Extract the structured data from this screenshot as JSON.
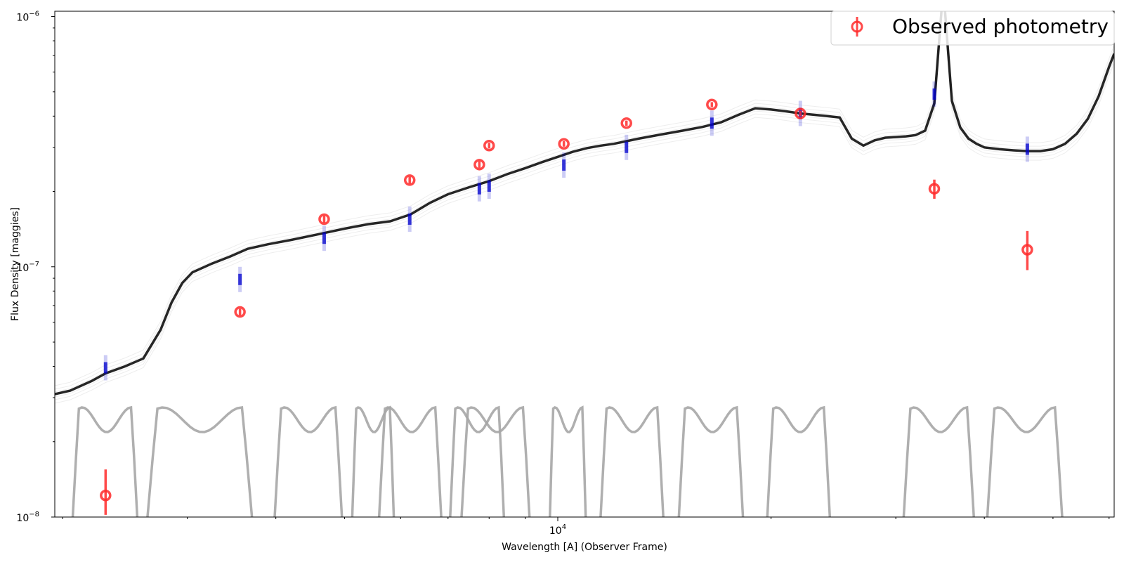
{
  "chart_data": {
    "type": "scatter",
    "title": "",
    "xlabel": "Wavelength [A] (Observer Frame)",
    "ylabel": "Flux Density [maggies]",
    "xscale": "log",
    "yscale": "log",
    "xlim": [
      1950,
      61000
    ],
    "ylim": [
      1e-08,
      1.05e-06
    ],
    "grid": false,
    "legend": {
      "placement": "top-right",
      "entries": [
        "Observed photometry"
      ]
    },
    "x_ticks": [
      {
        "value": 10000,
        "base": "10",
        "exp": "4"
      }
    ],
    "y_ticks": [
      {
        "value": 1e-06,
        "base": "10",
        "exp": "−6"
      },
      {
        "value": 1e-07,
        "base": "10",
        "exp": "−7"
      },
      {
        "value": 1e-08,
        "base": "10",
        "exp": "−8"
      }
    ],
    "colors": {
      "photometry": "#ff2a2a",
      "model_spectrum": "#000000",
      "model_photometry": "#0000cc",
      "filter_curves": "#a6a6a6"
    },
    "series": [
      {
        "name": "Observed photometry",
        "kind": "errorbar",
        "points": [
          {
            "x": 2300,
            "y": 1.22e-08,
            "yerr_low": 2e-09,
            "yerr_high": 3.3e-09
          },
          {
            "x": 3560,
            "y": 6.6e-08,
            "yerr_low": 2e-09,
            "yerr_high": 2e-09
          },
          {
            "x": 4680,
            "y": 1.55e-07,
            "yerr_low": 5e-09,
            "yerr_high": 5e-09
          },
          {
            "x": 6180,
            "y": 2.22e-07,
            "yerr_low": 7e-09,
            "yerr_high": 7e-09
          },
          {
            "x": 7750,
            "y": 2.56e-07,
            "yerr_low": 8e-09,
            "yerr_high": 8e-09
          },
          {
            "x": 8000,
            "y": 3.05e-07,
            "yerr_low": 8e-09,
            "yerr_high": 8e-09
          },
          {
            "x": 10200,
            "y": 3.1e-07,
            "yerr_low": 8e-09,
            "yerr_high": 8e-09
          },
          {
            "x": 12500,
            "y": 3.75e-07,
            "yerr_low": 9e-09,
            "yerr_high": 9e-09
          },
          {
            "x": 16500,
            "y": 4.45e-07,
            "yerr_low": 1e-08,
            "yerr_high": 1e-08
          },
          {
            "x": 22000,
            "y": 4.1e-07,
            "yerr_low": 1e-08,
            "yerr_high": 1e-08
          },
          {
            "x": 34000,
            "y": 2.05e-07,
            "yerr_low": 1.8e-08,
            "yerr_high": 1.8e-08
          },
          {
            "x": 46000,
            "y": 1.17e-07,
            "yerr_low": 2e-08,
            "yerr_high": 2.2e-08
          }
        ]
      },
      {
        "kind": "model_spectrum",
        "x": [
          1950,
          2050,
          2200,
          2300,
          2450,
          2600,
          2750,
          2850,
          2950,
          3050,
          3250,
          3450,
          3650,
          3900,
          4200,
          4600,
          5000,
          5400,
          5800,
          6200,
          6600,
          7000,
          7500,
          8000,
          8500,
          9000,
          9500,
          10000,
          10500,
          11000,
          11500,
          12000,
          13000,
          14000,
          15000,
          16000,
          17000,
          18000,
          19000,
          20000,
          21000,
          22000,
          23000,
          24000,
          25000,
          26000,
          27000,
          28000,
          29000,
          30000,
          31000,
          32000,
          33000,
          34000,
          35000,
          36000,
          37000,
          38000,
          39000,
          40000,
          42000,
          44000,
          46000,
          48000,
          50000,
          52000,
          54000,
          56000,
          58000,
          60000,
          61000
        ],
        "y": [
          3.1e-08,
          3.2e-08,
          3.5e-08,
          3.75e-08,
          4e-08,
          4.3e-08,
          5.6e-08,
          7.2e-08,
          8.6e-08,
          9.5e-08,
          1.03e-07,
          1.1e-07,
          1.18e-07,
          1.23e-07,
          1.28e-07,
          1.35e-07,
          1.42e-07,
          1.48e-07,
          1.52e-07,
          1.62e-07,
          1.8e-07,
          1.95e-07,
          2.08e-07,
          2.2e-07,
          2.35e-07,
          2.48e-07,
          2.62e-07,
          2.75e-07,
          2.88e-07,
          2.98e-07,
          3.05e-07,
          3.1e-07,
          3.25e-07,
          3.38e-07,
          3.5e-07,
          3.62e-07,
          3.78e-07,
          4.05e-07,
          4.3e-07,
          4.25e-07,
          4.18e-07,
          4.1e-07,
          4.05e-07,
          4e-07,
          3.95e-07,
          3.25e-07,
          3.05e-07,
          3.2e-07,
          3.28e-07,
          3.3e-07,
          3.32e-07,
          3.36e-07,
          3.5e-07,
          4.5e-07,
          1.3e-06,
          4.6e-07,
          3.6e-07,
          3.25e-07,
          3.1e-07,
          3e-07,
          2.95e-07,
          2.92e-07,
          2.9e-07,
          2.9e-07,
          2.95e-07,
          3.1e-07,
          3.4e-07,
          3.9e-07,
          4.8e-07,
          6.3e-07,
          7.1e-07
        ]
      },
      {
        "kind": "model_photometry",
        "points": [
          {
            "x": 2300,
            "y": 3.95e-08
          },
          {
            "x": 3560,
            "y": 8.9e-08
          },
          {
            "x": 4680,
            "y": 1.3e-07
          },
          {
            "x": 6180,
            "y": 1.55e-07
          },
          {
            "x": 7750,
            "y": 2.05e-07
          },
          {
            "x": 8000,
            "y": 2.1e-07
          },
          {
            "x": 10200,
            "y": 2.55e-07
          },
          {
            "x": 12500,
            "y": 3e-07
          },
          {
            "x": 16500,
            "y": 3.75e-07
          },
          {
            "x": 22000,
            "y": 4.1e-07
          },
          {
            "x": 34000,
            "y": 4.9e-07
          },
          {
            "x": 46000,
            "y": 2.95e-07
          }
        ]
      },
      {
        "kind": "filter_curves",
        "filters": [
          {
            "lo": 2050,
            "hi": 2570,
            "peak": 2450
          },
          {
            "lo": 2600,
            "hi": 3750,
            "peak": 3600
          },
          {
            "lo": 3950,
            "hi": 5000,
            "peak": 4700
          },
          {
            "lo": 5100,
            "hi": 5900,
            "peak": 5400
          },
          {
            "lo": 5550,
            "hi": 6900,
            "peak": 5750
          },
          {
            "lo": 7000,
            "hi": 8450,
            "peak": 7500
          },
          {
            "lo": 7250,
            "hi": 9200,
            "peak": 8000
          },
          {
            "lo": 9700,
            "hi": 11000,
            "peak": 10300
          },
          {
            "lo": 11400,
            "hi": 14200,
            "peak": 12500
          },
          {
            "lo": 14700,
            "hi": 18400,
            "peak": 16500
          },
          {
            "lo": 19600,
            "hi": 24400,
            "peak": 22000
          },
          {
            "lo": 30500,
            "hi": 39000,
            "peak": 35000
          },
          {
            "lo": 40000,
            "hi": 52000,
            "peak": 45000
          }
        ]
      }
    ]
  }
}
